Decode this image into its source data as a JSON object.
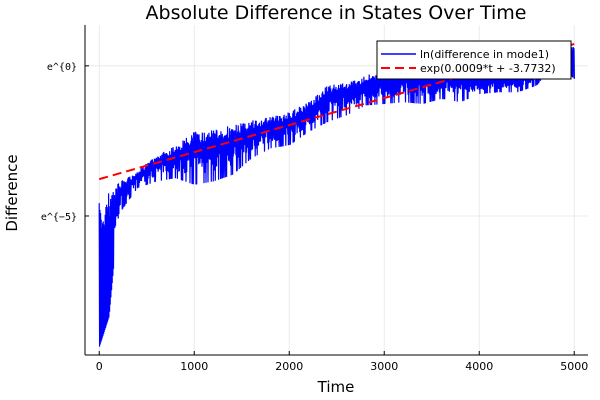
{
  "chart_data": {
    "type": "line",
    "title": "Absolute Difference in States Over Time",
    "xlabel": "Time",
    "ylabel": "Difference",
    "y_scale": "log (natural)",
    "xlim": [
      -150,
      5145
    ],
    "ylim_ln": [
      -9.63,
      1.36
    ],
    "x_ticks": [
      0,
      1000,
      2000,
      3000,
      4000,
      5000
    ],
    "x_tick_labels": [
      "0",
      "1000",
      "2000",
      "3000",
      "4000",
      "5000"
    ],
    "y_ticks_ln": [
      0,
      -5
    ],
    "y_tick_labels": [
      "e^{0}",
      "e^{−5}"
    ],
    "grid": true,
    "legend_position": "top-right",
    "series": [
      {
        "name": "ln(difference in mode1)",
        "color": "#0000ff",
        "style": "solid",
        "note": "oscillating signal; envelope given as ln(value)",
        "t": [
          0,
          100,
          200,
          400,
          600,
          800,
          1000,
          1200,
          1400,
          1600,
          1800,
          2000,
          2200,
          2400,
          2600,
          2800,
          3000,
          3200,
          3400,
          3600,
          3800,
          4000,
          4200,
          4400,
          4600,
          4800,
          5000
        ],
        "upper_ln": [
          -4.57,
          -4.18,
          -3.9,
          -3.52,
          -2.97,
          -2.64,
          -2.2,
          -2.09,
          -1.98,
          -1.82,
          -1.71,
          -1.54,
          -1.21,
          -0.66,
          -0.55,
          -0.33,
          -0.11,
          -0.11,
          0,
          0,
          -0.11,
          -0.22,
          -0.33,
          -0.33,
          -0.11,
          0.72,
          0.66
        ],
        "lower_ln": [
          -9.35,
          -8.36,
          -4.95,
          -4.07,
          -3.85,
          -3.74,
          -3.96,
          -3.85,
          -3.63,
          -3.08,
          -2.75,
          -2.64,
          -2.2,
          -1.87,
          -1.65,
          -1.32,
          -1.27,
          -1.21,
          -1.27,
          -1.1,
          -1.21,
          -0.94,
          -0.88,
          -0.88,
          -0.66,
          0.11,
          -0.44
        ]
      },
      {
        "name": "exp(0.0009*t + -3.7732)",
        "color": "#ff0000",
        "style": "dashed",
        "slope": 0.0009,
        "intercept": -3.7732,
        "t_range": [
          0,
          5000
        ]
      }
    ]
  }
}
